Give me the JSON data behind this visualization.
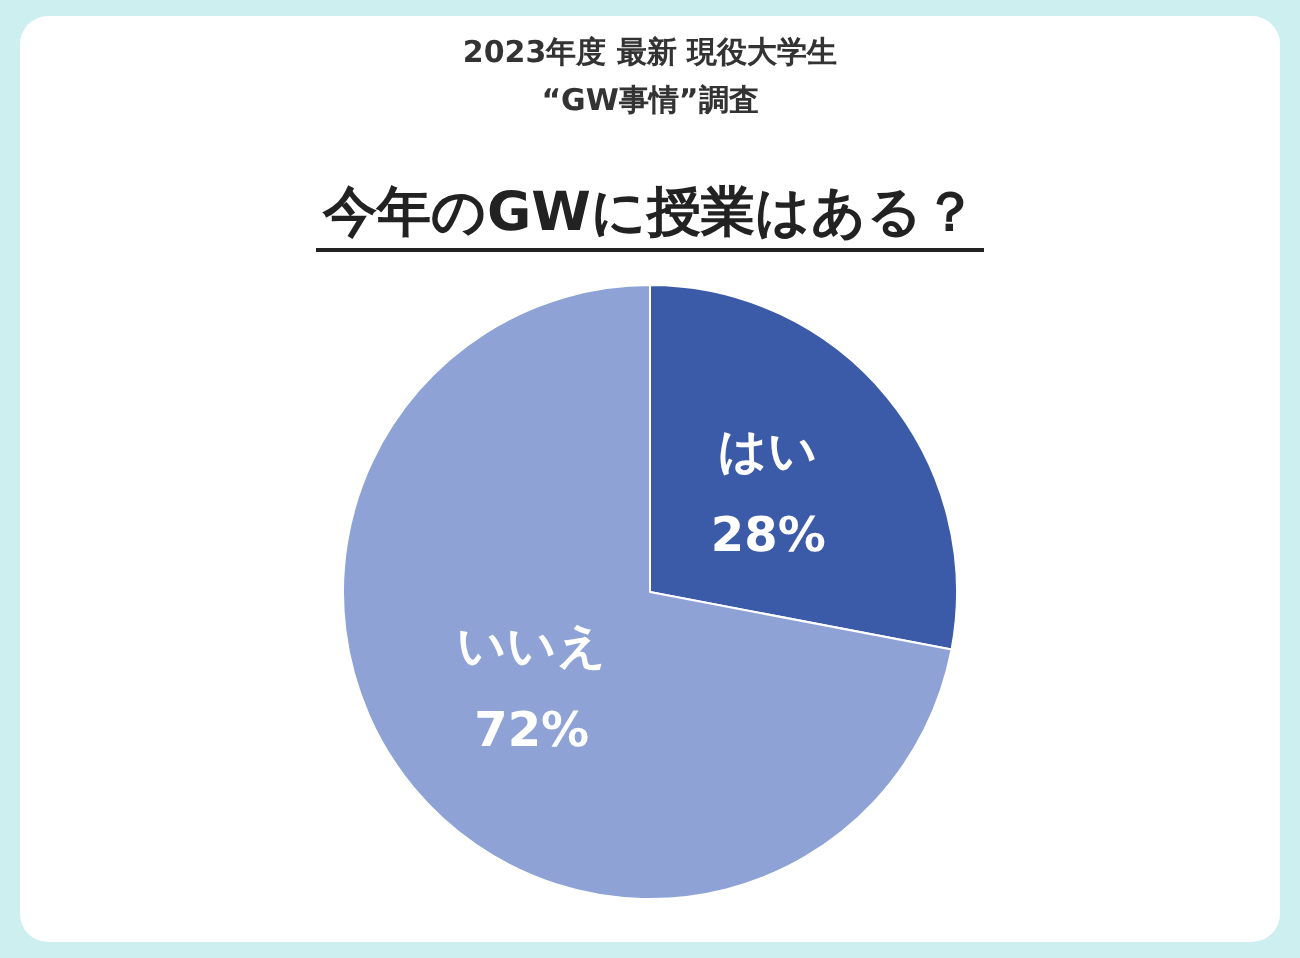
{
  "chart_data": {
    "type": "pie",
    "subtitle": "2023年度 最新 現役大学生\n“GW事情”調査",
    "title": "今年のGWに授業はある？",
    "categories": [
      "はい",
      "いいえ"
    ],
    "values": [
      28,
      72
    ],
    "value_labels": [
      "28%",
      "72%"
    ],
    "colors": [
      "#3b5ba8",
      "#8ea2d6"
    ],
    "legend": false
  }
}
